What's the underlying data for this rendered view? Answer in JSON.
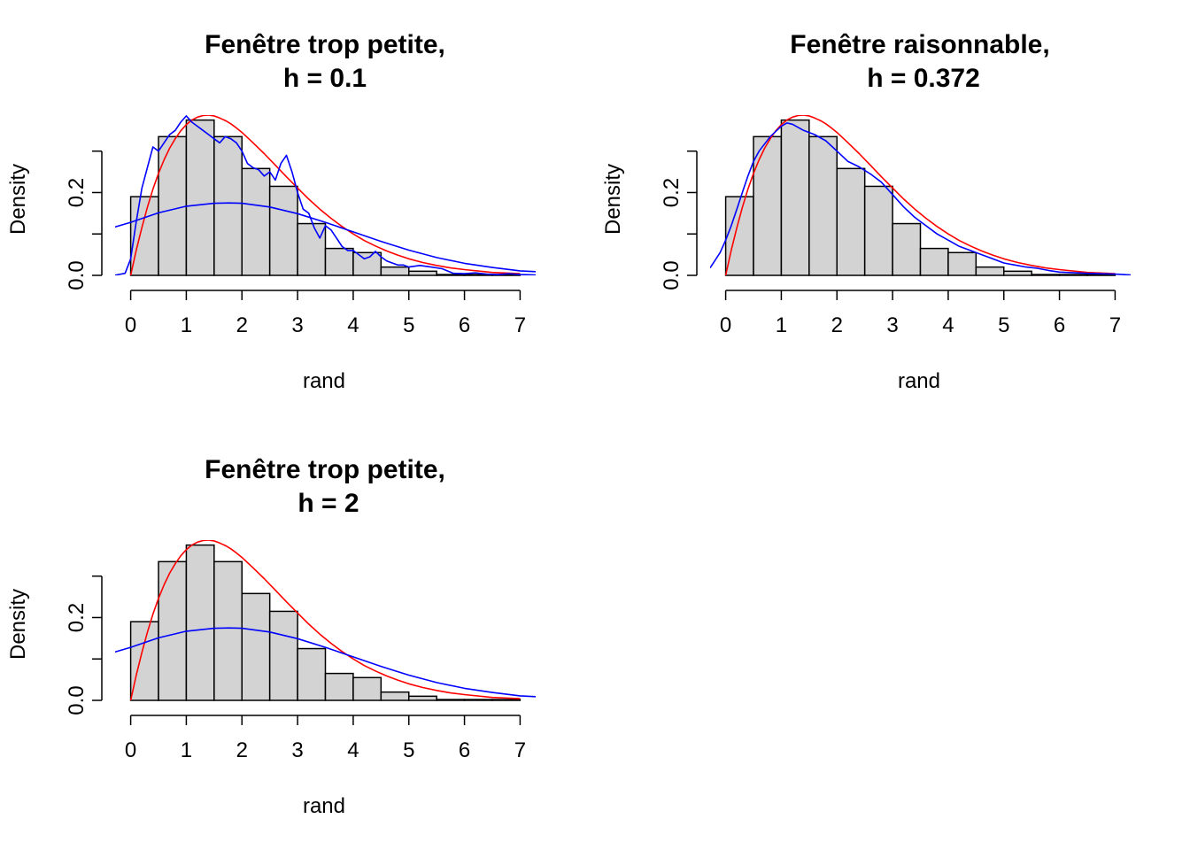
{
  "chart_data": [
    {
      "type": "bar",
      "title": [
        "Fenêtre trop petite,",
        "h = 0.1"
      ],
      "xlabel": "rand",
      "ylabel": "Density",
      "xlim": [
        -0.28,
        7.28
      ],
      "ylim": [
        0,
        0.387
      ],
      "x_ticks": [
        0,
        1,
        2,
        3,
        4,
        5,
        6,
        7
      ],
      "x_tick_labels": [
        "0",
        "1",
        "2",
        "3",
        "4",
        "5",
        "6",
        "7"
      ],
      "y_ticks": [
        0,
        0.1,
        0.2,
        0.3
      ],
      "y_tick_labels": [
        "0.0",
        "",
        "0.2",
        ""
      ],
      "grid": false,
      "legend": "none",
      "histogram": {
        "bin_edges": [
          0,
          0.5,
          1,
          1.5,
          2,
          2.5,
          3,
          3.5,
          4,
          4.5,
          5,
          5.5,
          6,
          6.5,
          7
        ],
        "density": [
          0.19,
          0.335,
          0.375,
          0.335,
          0.258,
          0.215,
          0.125,
          0.065,
          0.055,
          0.02,
          0.01,
          0.002,
          0.002,
          0.002
        ],
        "fill": "#d3d3d3"
      },
      "series": [
        {
          "color": "#ff0000",
          "x": [
            0,
            0.1,
            0.2,
            0.3,
            0.4,
            0.5,
            0.6,
            0.7,
            0.8,
            0.9,
            1,
            1.1,
            1.2,
            1.3,
            1.4,
            1.5,
            1.6,
            1.7,
            1.8,
            1.9,
            2,
            2.2,
            2.4,
            2.6,
            2.8,
            3,
            3.2,
            3.4,
            3.6,
            3.8,
            4,
            4.2,
            4.4,
            4.6,
            4.8,
            5,
            5.25,
            5.5,
            5.75,
            6,
            6.5,
            7
          ],
          "y": [
            0,
            0.061,
            0.115,
            0.164,
            0.208,
            0.246,
            0.279,
            0.307,
            0.33,
            0.349,
            0.364,
            0.375,
            0.382,
            0.386,
            0.387,
            0.385,
            0.38,
            0.374,
            0.366,
            0.356,
            0.345,
            0.32,
            0.294,
            0.266,
            0.238,
            0.211,
            0.184,
            0.16,
            0.138,
            0.118,
            0.1,
            0.084,
            0.071,
            0.059,
            0.049,
            0.04,
            0.031,
            0.024,
            0.018,
            0.014,
            0.007,
            0.004
          ]
        },
        {
          "color": "#0000ff",
          "x": [
            -0.3,
            -0.1,
            0,
            0.1,
            0.2,
            0.3,
            0.4,
            0.5,
            0.6,
            0.7,
            0.8,
            0.9,
            1.0,
            1.1,
            1.2,
            1.3,
            1.4,
            1.5,
            1.6,
            1.7,
            1.8,
            1.9,
            2.0,
            2.1,
            2.2,
            2.3,
            2.4,
            2.5,
            2.6,
            2.7,
            2.8,
            2.9,
            3.0,
            3.1,
            3.2,
            3.3,
            3.4,
            3.5,
            3.6,
            3.7,
            3.8,
            3.9,
            4.0,
            4.1,
            4.2,
            4.3,
            4.4,
            4.5,
            4.6,
            4.7,
            4.8,
            4.9,
            5.0,
            5.2,
            5.4,
            5.6,
            5.8,
            6.0,
            6.2,
            6.4,
            6.6,
            6.8,
            7.0,
            7.28
          ],
          "y": [
            0,
            0.005,
            0.04,
            0.13,
            0.21,
            0.26,
            0.31,
            0.3,
            0.32,
            0.34,
            0.35,
            0.37,
            0.385,
            0.37,
            0.36,
            0.35,
            0.34,
            0.33,
            0.32,
            0.335,
            0.33,
            0.32,
            0.3,
            0.27,
            0.26,
            0.255,
            0.24,
            0.25,
            0.23,
            0.27,
            0.29,
            0.25,
            0.2,
            0.16,
            0.15,
            0.115,
            0.09,
            0.12,
            0.11,
            0.09,
            0.07,
            0.06,
            0.06,
            0.05,
            0.04,
            0.045,
            0.058,
            0.045,
            0.035,
            0.03,
            0.025,
            0.025,
            0.02,
            0.024,
            0.02,
            0.016,
            0.005,
            0.004,
            0.006,
            0.003,
            0.002,
            0.004,
            0.002,
            0.001
          ]
        },
        {
          "color": "#0000ff",
          "x": [
            -0.3,
            0,
            0.5,
            1,
            1.5,
            1.76,
            2,
            2.5,
            3,
            3.5,
            4,
            4.5,
            5,
            5.5,
            6,
            6.5,
            7,
            7.28
          ],
          "y": [
            0.116,
            0.128,
            0.151,
            0.167,
            0.174,
            0.175,
            0.174,
            0.165,
            0.149,
            0.128,
            0.105,
            0.082,
            0.061,
            0.043,
            0.029,
            0.019,
            0.011,
            0.009
          ]
        }
      ]
    },
    {
      "type": "bar",
      "title": [
        "Fenêtre raisonnable,",
        "h = 0.372"
      ],
      "xlabel": "rand",
      "ylabel": "Density",
      "xlim": [
        -0.28,
        7.28
      ],
      "ylim": [
        0,
        0.387
      ],
      "x_ticks": [
        0,
        1,
        2,
        3,
        4,
        5,
        6,
        7
      ],
      "x_tick_labels": [
        "0",
        "1",
        "2",
        "3",
        "4",
        "5",
        "6",
        "7"
      ],
      "y_ticks": [
        0,
        0.1,
        0.2,
        0.3
      ],
      "y_tick_labels": [
        "0.0",
        "",
        "0.2",
        ""
      ],
      "grid": false,
      "legend": "none",
      "histogram": {
        "bin_edges": [
          0,
          0.5,
          1,
          1.5,
          2,
          2.5,
          3,
          3.5,
          4,
          4.5,
          5,
          5.5,
          6,
          6.5,
          7
        ],
        "density": [
          0.19,
          0.335,
          0.375,
          0.335,
          0.258,
          0.215,
          0.125,
          0.065,
          0.055,
          0.02,
          0.01,
          0.002,
          0.002,
          0.002
        ],
        "fill": "#d3d3d3"
      },
      "series": [
        {
          "color": "#ff0000",
          "x": [
            0,
            0.1,
            0.2,
            0.3,
            0.4,
            0.5,
            0.6,
            0.7,
            0.8,
            0.9,
            1,
            1.1,
            1.2,
            1.3,
            1.4,
            1.5,
            1.6,
            1.7,
            1.8,
            1.9,
            2,
            2.2,
            2.4,
            2.6,
            2.8,
            3,
            3.2,
            3.4,
            3.6,
            3.8,
            4,
            4.2,
            4.4,
            4.6,
            4.8,
            5,
            5.25,
            5.5,
            5.75,
            6,
            6.5,
            7
          ],
          "y": [
            0,
            0.061,
            0.115,
            0.164,
            0.208,
            0.246,
            0.279,
            0.307,
            0.33,
            0.349,
            0.364,
            0.375,
            0.382,
            0.386,
            0.387,
            0.385,
            0.38,
            0.374,
            0.366,
            0.356,
            0.345,
            0.32,
            0.294,
            0.266,
            0.238,
            0.211,
            0.184,
            0.16,
            0.138,
            0.118,
            0.1,
            0.084,
            0.071,
            0.059,
            0.049,
            0.04,
            0.031,
            0.024,
            0.018,
            0.014,
            0.007,
            0.004
          ]
        },
        {
          "color": "#0000ff",
          "x": [
            -0.28,
            -0.1,
            0,
            0.1,
            0.2,
            0.3,
            0.4,
            0.5,
            0.6,
            0.8,
            1.0,
            1.1,
            1.2,
            1.4,
            1.6,
            1.8,
            2.0,
            2.2,
            2.4,
            2.6,
            2.8,
            3.0,
            3.2,
            3.4,
            3.6,
            3.8,
            4.0,
            4.2,
            4.4,
            4.6,
            4.8,
            5.0,
            5.2,
            5.4,
            5.6,
            5.8,
            6.0,
            6.5,
            7.0,
            7.28
          ],
          "y": [
            0.018,
            0.055,
            0.085,
            0.12,
            0.16,
            0.2,
            0.24,
            0.275,
            0.3,
            0.335,
            0.36,
            0.368,
            0.365,
            0.35,
            0.34,
            0.325,
            0.3,
            0.275,
            0.262,
            0.245,
            0.225,
            0.195,
            0.165,
            0.14,
            0.12,
            0.1,
            0.085,
            0.07,
            0.06,
            0.05,
            0.04,
            0.03,
            0.025,
            0.02,
            0.017,
            0.012,
            0.008,
            0.005,
            0.003,
            0.001
          ]
        }
      ]
    },
    {
      "type": "bar",
      "title": [
        "Fenêtre trop petite,",
        "h = 2"
      ],
      "xlabel": "rand",
      "ylabel": "Density",
      "xlim": [
        -0.28,
        7.28
      ],
      "ylim": [
        0,
        0.387
      ],
      "x_ticks": [
        0,
        1,
        2,
        3,
        4,
        5,
        6,
        7
      ],
      "x_tick_labels": [
        "0",
        "1",
        "2",
        "3",
        "4",
        "5",
        "6",
        "7"
      ],
      "y_ticks": [
        0,
        0.1,
        0.2,
        0.3
      ],
      "y_tick_labels": [
        "0.0",
        "",
        "0.2",
        ""
      ],
      "grid": false,
      "legend": "none",
      "histogram": {
        "bin_edges": [
          0,
          0.5,
          1,
          1.5,
          2,
          2.5,
          3,
          3.5,
          4,
          4.5,
          5,
          5.5,
          6,
          6.5,
          7
        ],
        "density": [
          0.19,
          0.335,
          0.375,
          0.335,
          0.258,
          0.215,
          0.125,
          0.065,
          0.055,
          0.02,
          0.01,
          0.002,
          0.002,
          0.002
        ],
        "fill": "#d3d3d3"
      },
      "series": [
        {
          "color": "#ff0000",
          "x": [
            0,
            0.1,
            0.2,
            0.3,
            0.4,
            0.5,
            0.6,
            0.7,
            0.8,
            0.9,
            1,
            1.1,
            1.2,
            1.3,
            1.4,
            1.5,
            1.6,
            1.7,
            1.8,
            1.9,
            2,
            2.2,
            2.4,
            2.6,
            2.8,
            3,
            3.2,
            3.4,
            3.6,
            3.8,
            4,
            4.2,
            4.4,
            4.6,
            4.8,
            5,
            5.25,
            5.5,
            5.75,
            6,
            6.5,
            7
          ],
          "y": [
            0,
            0.061,
            0.115,
            0.164,
            0.208,
            0.246,
            0.279,
            0.307,
            0.33,
            0.349,
            0.364,
            0.375,
            0.382,
            0.386,
            0.387,
            0.385,
            0.38,
            0.374,
            0.366,
            0.356,
            0.345,
            0.32,
            0.294,
            0.266,
            0.238,
            0.211,
            0.184,
            0.16,
            0.138,
            0.118,
            0.1,
            0.084,
            0.071,
            0.059,
            0.049,
            0.04,
            0.031,
            0.024,
            0.018,
            0.014,
            0.007,
            0.004
          ]
        },
        {
          "color": "#0000ff",
          "x": [
            -0.3,
            0,
            0.5,
            1,
            1.5,
            1.76,
            2,
            2.5,
            3,
            3.5,
            4,
            4.5,
            5,
            5.5,
            6,
            6.5,
            7,
            7.28
          ],
          "y": [
            0.116,
            0.128,
            0.151,
            0.167,
            0.174,
            0.175,
            0.174,
            0.165,
            0.149,
            0.128,
            0.105,
            0.082,
            0.061,
            0.043,
            0.029,
            0.019,
            0.011,
            0.009
          ]
        }
      ]
    }
  ]
}
